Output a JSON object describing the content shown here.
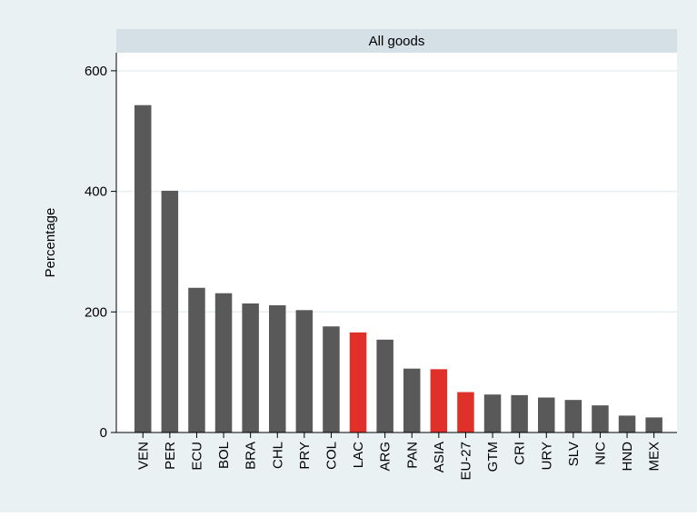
{
  "chart_data": {
    "type": "bar",
    "title": "All goods",
    "xlabel": "",
    "ylabel": "Percentage",
    "ylim": [
      0,
      630
    ],
    "yticks": [
      0,
      200,
      400,
      600
    ],
    "grid": true,
    "categories": [
      "VEN",
      "PER",
      "ECU",
      "BOL",
      "BRA",
      "CHL",
      "PRY",
      "COL",
      "LAC",
      "ARG",
      "PAN",
      "ASIA",
      "EU-27",
      "GTM",
      "CRI",
      "URY",
      "SLV",
      "NIC",
      "HND",
      "MEX"
    ],
    "values": [
      543,
      401,
      240,
      231,
      214,
      211,
      203,
      176,
      166,
      154,
      106,
      105,
      67,
      63,
      62,
      58,
      54,
      45,
      28,
      25
    ],
    "highlighted": [
      "LAC",
      "ASIA",
      "EU-27"
    ],
    "colors": {
      "bar": "#595959",
      "highlight": "#e0302a",
      "plot_background": "#ffffff",
      "outer_background": "#eaf1f3",
      "title_band": "#d4e0e6",
      "grid": "#e9eff2"
    }
  }
}
